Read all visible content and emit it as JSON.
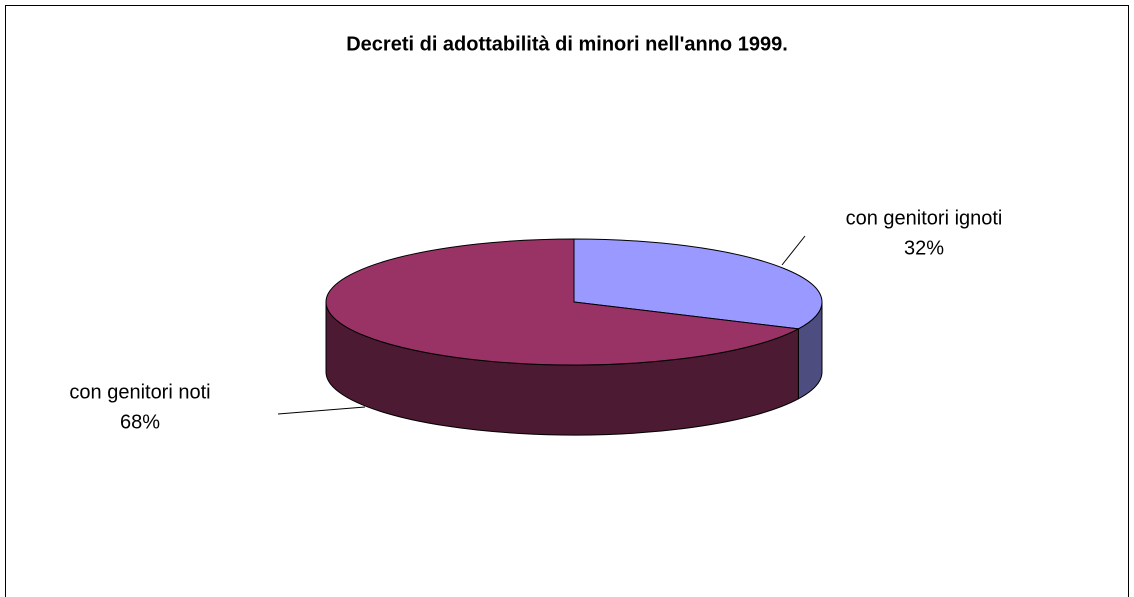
{
  "chart_data": {
    "type": "pie3d",
    "title": "Decreti di adottabilità di minori nell'anno 1999.",
    "categories": [
      "con genitori ignoti",
      "con genitori noti"
    ],
    "values": [
      32,
      68
    ],
    "value_labels": [
      "32%",
      "68%"
    ],
    "colors": [
      "#9999ff",
      "#993366"
    ]
  }
}
